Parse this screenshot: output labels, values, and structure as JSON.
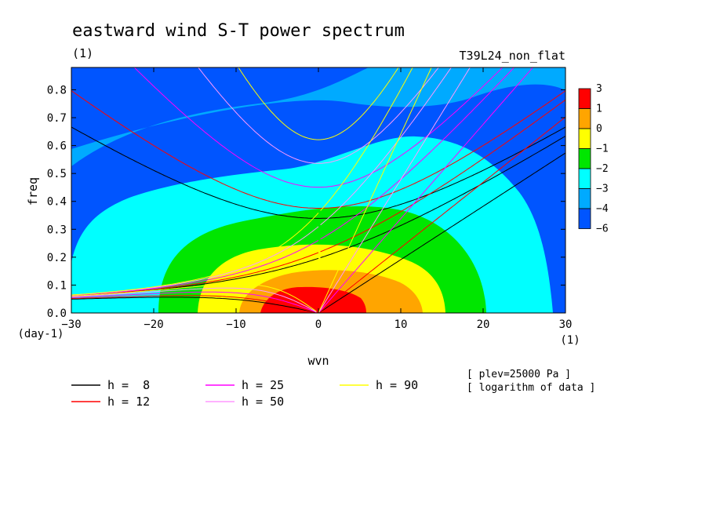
{
  "chart_data": {
    "type": "heatmap",
    "title": "eastward wind S-T power spectrum",
    "subtitle_left": "(1)",
    "subtitle_right": "T39L24_non_flat",
    "xlabel": "wvn",
    "ylabel": "freq",
    "x_unit": "(1)",
    "y_unit": "(day-1)",
    "xlim": [
      -30,
      30
    ],
    "ylim": [
      0,
      0.88
    ],
    "xticks": [
      -30,
      -20,
      -10,
      0,
      10,
      20,
      30
    ],
    "yticks": [
      0.0,
      0.1,
      0.2,
      0.3,
      0.4,
      0.5,
      0.6,
      0.7,
      0.8
    ],
    "annotations": [
      "[ plev=25000 Pa ]",
      "[ logarithm of data ]"
    ],
    "colorbar": {
      "labels": [
        "3",
        "1",
        "0",
        "-1",
        "-2",
        "-3",
        "-4",
        "-6"
      ],
      "bands": [
        {
          "range": [
            1,
            3
          ],
          "color": "#ff0000"
        },
        {
          "range": [
            0,
            1
          ],
          "color": "#ffa500"
        },
        {
          "range": [
            -1,
            0
          ],
          "color": "#ffff00"
        },
        {
          "range": [
            -2,
            -1
          ],
          "color": "#00e600"
        },
        {
          "range": [
            -3,
            -2
          ],
          "color": "#00ffff"
        },
        {
          "range": [
            -4,
            -3
          ],
          "color": "#00aaff"
        },
        {
          "range": [
            -6,
            -4
          ],
          "color": "#0055ff"
        }
      ]
    },
    "contour_regions": [
      {
        "level": -4,
        "color": "#00aaff"
      },
      {
        "level": -3,
        "color": "#00ffff"
      },
      {
        "level": -2,
        "color": "#00e600"
      },
      {
        "level": -1,
        "color": "#ffff00"
      },
      {
        "level": 0,
        "color": "#ffa500"
      },
      {
        "level": 1,
        "color": "#ff0000"
      }
    ],
    "dispersion_curves": [
      {
        "name": "h =  8",
        "h": 8,
        "color": "#000000"
      },
      {
        "name": "h = 12",
        "h": 12,
        "color": "#ff0000"
      },
      {
        "name": "h = 25",
        "h": 25,
        "color": "#ff00ff"
      },
      {
        "name": "h = 50",
        "h": 50,
        "color": "#ff99ff"
      },
      {
        "name": "h = 90",
        "h": 90,
        "color": "#ffff00"
      }
    ]
  }
}
